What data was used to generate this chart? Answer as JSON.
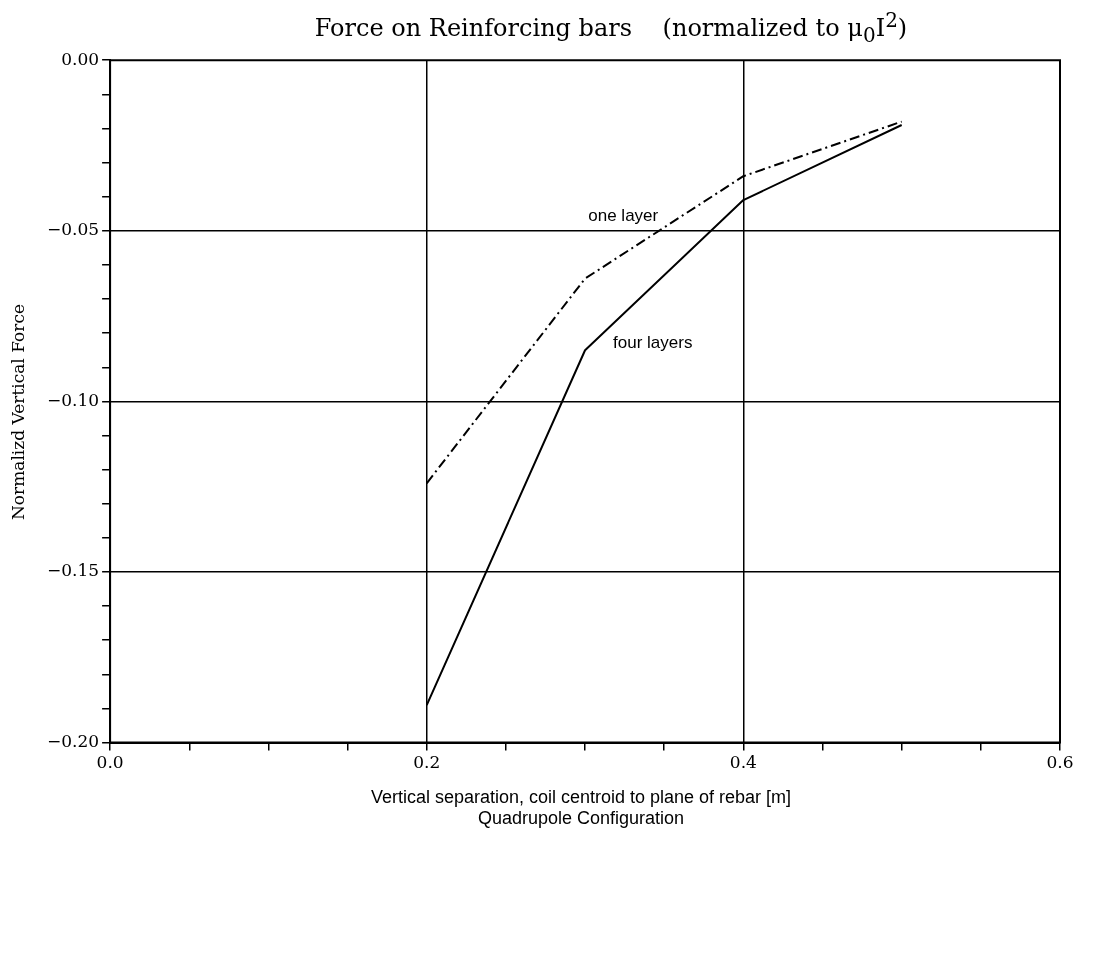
{
  "chart_data": {
    "type": "line",
    "title": "Force on Reinforcing bars    (normalized to μ$_{0}$I$^{2}$)",
    "xlabel": "Vertical separation, coil centroid to plane of rebar [m]",
    "ylabel": "Normalizd Vertical Force",
    "annotations": [
      "Quadrupole Configuration"
    ],
    "series": [
      {
        "name": "one layer",
        "color": "#000000",
        "line_style": "dashed",
        "x": [
          0.2,
          0.3,
          0.4,
          0.5
        ],
        "values": [
          -0.124,
          -0.064,
          -0.034,
          -0.018
        ]
      },
      {
        "name": "four layers",
        "color": "#000000",
        "line_style": "solid",
        "x": [
          0.2,
          0.3,
          0.4,
          0.5
        ],
        "values": [
          -0.189,
          -0.085,
          -0.041,
          -0.019
        ]
      }
    ],
    "xlim": [
      0,
      0.6
    ],
    "ylim": [
      -0.2,
      0
    ],
    "xticks": [
      {
        "value": 0,
        "label": "0.0"
      },
      {
        "value": 0.05,
        "label": null
      },
      {
        "value": 0.1,
        "label": null
      },
      {
        "value": 0.15,
        "label": null
      },
      {
        "value": 0.2,
        "label": "0.2"
      },
      {
        "value": 0.25,
        "label": null
      },
      {
        "value": 0.3,
        "label": null
      },
      {
        "value": 0.35,
        "label": null
      },
      {
        "value": 0.4,
        "label": "0.4"
      },
      {
        "value": 0.45,
        "label": null
      },
      {
        "value": 0.5,
        "label": null
      },
      {
        "value": 0.55,
        "label": null
      },
      {
        "value": 0.6,
        "label": "0.6"
      }
    ],
    "yticks": [
      {
        "value": -0.2,
        "label": "−0.20"
      },
      {
        "value": -0.19,
        "label": null
      },
      {
        "value": -0.18,
        "label": null
      },
      {
        "value": -0.17,
        "label": null
      },
      {
        "value": -0.16,
        "label": null
      },
      {
        "value": -0.15,
        "label": "−0.15"
      },
      {
        "value": -0.14,
        "label": null
      },
      {
        "value": -0.13,
        "label": null
      },
      {
        "value": -0.12,
        "label": null
      },
      {
        "value": -0.11,
        "label": null
      },
      {
        "value": -0.1,
        "label": "−0.10"
      },
      {
        "value": -0.09,
        "label": null
      },
      {
        "value": -0.08,
        "label": null
      },
      {
        "value": -0.07,
        "label": null
      },
      {
        "value": -0.06,
        "label": null
      },
      {
        "value": -0.05,
        "label": "−0.05"
      },
      {
        "value": -0.04,
        "label": null
      },
      {
        "value": -0.03,
        "label": null
      },
      {
        "value": -0.02,
        "label": null
      },
      {
        "value": -0.01,
        "label": null
      },
      {
        "value": 0,
        "label": "0.00"
      }
    ],
    "grid": true,
    "legend": false
  }
}
